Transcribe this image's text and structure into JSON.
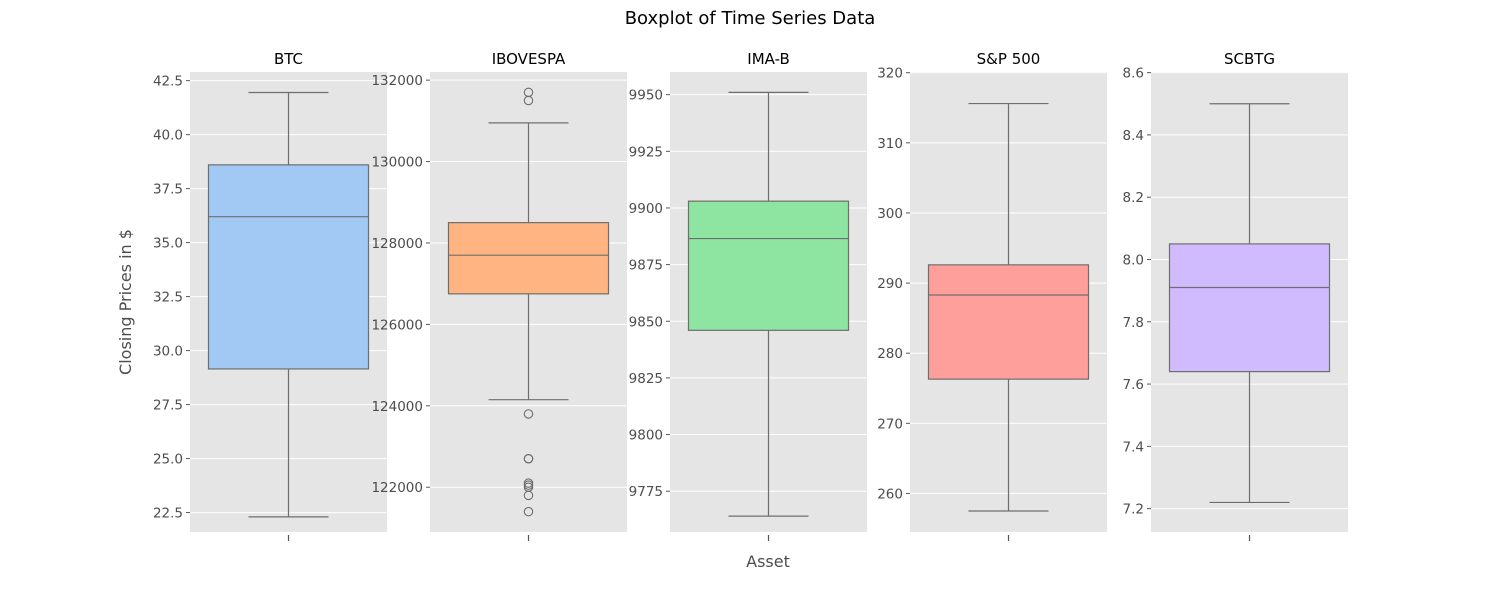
{
  "chart_data": {
    "type": "boxplot",
    "title": "Boxplot of Time Series Data",
    "xlabel": "Asset",
    "ylabel": "Closing Prices in $",
    "grid": true,
    "panels": [
      {
        "name": "BTC",
        "color": "#a1c9f4",
        "ylim": [
          21.6,
          42.9
        ],
        "yticks": [
          22.5,
          25.0,
          27.5,
          30.0,
          32.5,
          35.0,
          37.5,
          40.0,
          42.5
        ],
        "ytick_labels": [
          "22.5",
          "25.0",
          "27.5",
          "30.0",
          "32.5",
          "35.0",
          "37.5",
          "40.0",
          "42.5"
        ],
        "whisker_low": 22.3,
        "q1": 29.15,
        "median": 36.2,
        "q3": 38.6,
        "whisker_high": 41.95,
        "outliers": []
      },
      {
        "name": "IBOVESPA",
        "color": "#ffb482",
        "ylim": [
          120900,
          132200
        ],
        "yticks": [
          122000,
          124000,
          126000,
          128000,
          130000,
          132000
        ],
        "ytick_labels": [
          "122000",
          "124000",
          "126000",
          "128000",
          "130000",
          "132000"
        ],
        "whisker_low": 124150,
        "q1": 126750,
        "median": 127700,
        "q3": 128500,
        "whisker_high": 130950,
        "outliers": [
          131700,
          131500,
          123800,
          122700,
          122700,
          122100,
          122050,
          122000,
          121800,
          121400
        ]
      },
      {
        "name": "IMA-B",
        "color": "#8de5a1",
        "ylim": [
          9757,
          9960
        ],
        "yticks": [
          9775,
          9800,
          9825,
          9850,
          9875,
          9900,
          9925,
          9950
        ],
        "ytick_labels": [
          "9775",
          "9800",
          "9825",
          "9850",
          "9875",
          "9900",
          "9925",
          "9950"
        ],
        "whisker_low": 9764,
        "q1": 9846,
        "median": 9886.5,
        "q3": 9903,
        "whisker_high": 9951,
        "outliers": []
      },
      {
        "name": "S&P 500",
        "color": "#ff9f9b",
        "ylim": [
          254.5,
          320.1
        ],
        "yticks": [
          260,
          270,
          280,
          290,
          300,
          310,
          320
        ],
        "ytick_labels": [
          "260",
          "270",
          "280",
          "290",
          "300",
          "310",
          "320"
        ],
        "whisker_low": 257.5,
        "q1": 276.3,
        "median": 288.3,
        "q3": 292.6,
        "whisker_high": 315.6,
        "outliers": []
      },
      {
        "name": "SCBTG",
        "color": "#d0bbff",
        "ylim": [
          7.125,
          8.602
        ],
        "yticks": [
          7.2,
          7.4,
          7.6,
          7.8,
          8.0,
          8.2,
          8.4,
          8.6
        ],
        "ytick_labels": [
          "7.2",
          "7.4",
          "7.6",
          "7.8",
          "8.0",
          "8.2",
          "8.4",
          "8.6"
        ],
        "whisker_low": 7.22,
        "q1": 7.64,
        "median": 7.91,
        "q3": 8.05,
        "whisker_high": 8.5,
        "outliers": []
      }
    ]
  }
}
